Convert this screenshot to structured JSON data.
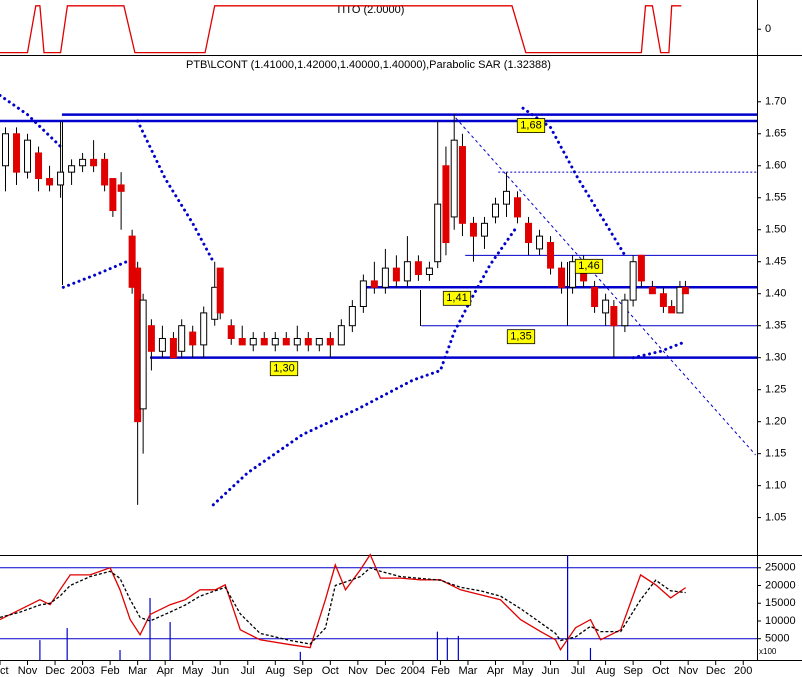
{
  "chart_data": [
    {
      "type": "line",
      "title": "TITO (2.0000)",
      "xlim": [
        0,
        27.5
      ],
      "ylim": [
        -2.5,
        2.5
      ],
      "yticks": [
        0
      ],
      "series": [
        {
          "color": "#e00000",
          "x": [
            0,
            1.0,
            1.3,
            1.45,
            1.6,
            2.2,
            2.45,
            4.5,
            4.9,
            7.45,
            7.8,
            18.6,
            19.1,
            23.3,
            23.45,
            23.7,
            24.0,
            24.3,
            24.4,
            24.75
          ],
          "values": [
            -2,
            -2,
            2,
            2,
            -2,
            -2,
            2,
            2,
            -2,
            -2,
            2,
            2,
            -2,
            -2,
            2,
            2,
            -2,
            -2,
            2,
            2
          ]
        }
      ]
    },
    {
      "type": "candlestick",
      "title": "PTB\\LCONT (1.41000,1.42000,1.40000,1.40000),Parabolic SAR (1.32388)",
      "xlim": [
        0,
        27.5
      ],
      "ylim": [
        0.99,
        1.77
      ],
      "yticks": [
        {
          "value": 1.05,
          "label": "1.05"
        },
        {
          "value": 1.1,
          "label": "1.10"
        },
        {
          "value": 1.15,
          "label": "1.15"
        },
        {
          "value": 1.2,
          "label": "1.20"
        },
        {
          "value": 1.25,
          "label": "1.25"
        },
        {
          "value": 1.3,
          "label": "1.30"
        },
        {
          "value": 1.35,
          "label": "1.35"
        },
        {
          "value": 1.4,
          "label": "1.40"
        },
        {
          "value": 1.45,
          "label": "1.45"
        },
        {
          "value": 1.5,
          "label": "1.50"
        },
        {
          "value": 1.55,
          "label": "1.55"
        },
        {
          "value": 1.6,
          "label": "1.60"
        },
        {
          "value": 1.65,
          "label": "1.65"
        },
        {
          "value": 1.7,
          "label": "1.70"
        }
      ],
      "up_color": "#ffffff",
      "down_color": "#e00000",
      "x": [
        0.2,
        0.6,
        1.0,
        1.4,
        1.8,
        2.2,
        2.6,
        3.0,
        3.4,
        3.8,
        4.1,
        4.4,
        4.8,
        5.0,
        5.2,
        5.5,
        5.9,
        6.3,
        6.6,
        7.0,
        7.4,
        7.8,
        8.0,
        8.4,
        8.8,
        9.2,
        9.6,
        10.0,
        10.4,
        10.8,
        11.2,
        11.6,
        12.0,
        12.4,
        12.8,
        13.2,
        13.6,
        14.0,
        14.4,
        14.8,
        15.2,
        15.6,
        15.9,
        16.2,
        16.5,
        16.8,
        17.2,
        17.6,
        18.0,
        18.4,
        18.8,
        19.2,
        19.6,
        20.0,
        20.4,
        20.8,
        21.2,
        21.6,
        22.0,
        22.3,
        22.7,
        23.0,
        23.3,
        23.7,
        24.1,
        24.4,
        24.7,
        24.9
      ],
      "open": [
        1.6,
        1.65,
        1.59,
        1.62,
        1.58,
        1.57,
        1.59,
        1.6,
        1.61,
        1.61,
        1.58,
        1.57,
        1.49,
        1.44,
        1.22,
        1.35,
        1.31,
        1.33,
        1.31,
        1.34,
        1.32,
        1.36,
        1.44,
        1.35,
        1.33,
        1.32,
        1.33,
        1.32,
        1.33,
        1.32,
        1.33,
        1.32,
        1.33,
        1.32,
        1.35,
        1.38,
        1.42,
        1.41,
        1.44,
        1.42,
        1.45,
        1.43,
        1.45,
        1.6,
        1.52,
        1.63,
        1.51,
        1.49,
        1.52,
        1.54,
        1.55,
        1.51,
        1.47,
        1.48,
        1.44,
        1.41,
        1.45,
        1.41,
        1.37,
        1.38,
        1.35,
        1.39,
        1.46,
        1.41,
        1.4,
        1.38,
        1.37,
        1.41
      ],
      "high": [
        1.66,
        1.66,
        1.65,
        1.63,
        1.6,
        1.67,
        1.61,
        1.62,
        1.64,
        1.62,
        1.58,
        1.59,
        1.5,
        1.45,
        1.4,
        1.36,
        1.35,
        1.34,
        1.36,
        1.35,
        1.38,
        1.45,
        1.44,
        1.36,
        1.35,
        1.34,
        1.34,
        1.34,
        1.34,
        1.35,
        1.34,
        1.33,
        1.34,
        1.36,
        1.39,
        1.43,
        1.45,
        1.47,
        1.46,
        1.49,
        1.46,
        1.45,
        1.67,
        1.63,
        1.68,
        1.65,
        1.52,
        1.52,
        1.55,
        1.59,
        1.56,
        1.52,
        1.5,
        1.49,
        1.45,
        1.46,
        1.46,
        1.42,
        1.4,
        1.39,
        1.4,
        1.46,
        1.46,
        1.42,
        1.41,
        1.39,
        1.42,
        1.42
      ],
      "low": [
        1.56,
        1.57,
        1.58,
        1.56,
        1.56,
        1.55,
        1.57,
        1.59,
        1.59,
        1.56,
        1.52,
        1.5,
        1.4,
        1.07,
        1.15,
        1.28,
        1.3,
        1.3,
        1.3,
        1.3,
        1.3,
        1.35,
        1.36,
        1.32,
        1.32,
        1.31,
        1.32,
        1.31,
        1.32,
        1.31,
        1.31,
        1.31,
        1.3,
        1.32,
        1.34,
        1.37,
        1.4,
        1.4,
        1.41,
        1.41,
        1.42,
        1.42,
        1.44,
        1.46,
        1.5,
        1.49,
        1.45,
        1.47,
        1.51,
        1.52,
        1.51,
        1.46,
        1.46,
        1.43,
        1.4,
        1.4,
        1.41,
        1.37,
        1.35,
        1.3,
        1.34,
        1.38,
        1.41,
        1.4,
        1.37,
        1.37,
        1.37,
        1.4
      ],
      "close": [
        1.65,
        1.59,
        1.64,
        1.58,
        1.57,
        1.59,
        1.6,
        1.61,
        1.6,
        1.57,
        1.53,
        1.56,
        1.41,
        1.2,
        1.39,
        1.31,
        1.33,
        1.3,
        1.35,
        1.32,
        1.37,
        1.41,
        1.37,
        1.33,
        1.32,
        1.33,
        1.32,
        1.33,
        1.32,
        1.33,
        1.32,
        1.33,
        1.32,
        1.35,
        1.38,
        1.42,
        1.41,
        1.44,
        1.42,
        1.45,
        1.43,
        1.44,
        1.54,
        1.48,
        1.64,
        1.51,
        1.49,
        1.51,
        1.54,
        1.56,
        1.52,
        1.48,
        1.49,
        1.44,
        1.41,
        1.45,
        1.42,
        1.38,
        1.39,
        1.35,
        1.39,
        1.45,
        1.42,
        1.4,
        1.38,
        1.37,
        1.41,
        1.4
      ],
      "sar": {
        "color": "#0000cc",
        "x": [
          0,
          1,
          2.2,
          null,
          2.3,
          3.5,
          4.6,
          null,
          5,
          6,
          7,
          7.75,
          null,
          7.75,
          9,
          11,
          13,
          15,
          16,
          16.5,
          17.1,
          17.8,
          18.7,
          null,
          19,
          20,
          21,
          22,
          22.7,
          null,
          23,
          24,
          24.9
        ],
        "values": [
          1.71,
          1.68,
          1.63,
          null,
          1.41,
          1.43,
          1.45,
          null,
          1.67,
          1.58,
          1.51,
          1.45,
          null,
          1.07,
          1.12,
          1.18,
          1.22,
          1.265,
          1.28,
          1.34,
          1.39,
          1.445,
          1.5,
          null,
          1.69,
          1.66,
          1.58,
          1.51,
          1.46,
          null,
          1.3,
          1.31,
          1.325
        ]
      },
      "level_color": "#0000cc",
      "levels": [
        {
          "value": 1.68,
          "label": "1,68",
          "from": 2.25,
          "style": "thick"
        },
        {
          "value": 1.67,
          "from": 0,
          "style": "thick"
        },
        {
          "value": 1.59,
          "from": 18.1,
          "style": "dotted"
        },
        {
          "value": 1.46,
          "label": "1,46",
          "from": 16.9,
          "style": "thin"
        },
        {
          "value": 1.41,
          "label": "1,41",
          "from": 13.1,
          "style": "thick"
        },
        {
          "value": 1.35,
          "label": "1,35",
          "from": 15.3,
          "style": "thin"
        },
        {
          "value": 1.3,
          "label": "1,30",
          "from": 5.45,
          "style": "thick"
        }
      ],
      "trendline": {
        "from": [
          16.55,
          1.675
        ],
        "to": [
          27.45,
          1.148
        ]
      }
    },
    {
      "type": "line",
      "xlim": [
        0,
        27.5
      ],
      "ylim": [
        -1000,
        28600
      ],
      "yticks": [
        5000,
        10000,
        15000,
        20000,
        25000
      ],
      "note": "x100",
      "level_color": "#0000cc",
      "levels": [
        {
          "value": 25000
        },
        {
          "value": 5000
        }
      ],
      "xticks": [
        {
          "value": 0,
          "label": "Oct"
        },
        {
          "value": 1,
          "label": "Nov"
        },
        {
          "value": 2,
          "label": "Dec"
        },
        {
          "value": 3,
          "label": "2003"
        },
        {
          "value": 4,
          "label": "Feb"
        },
        {
          "value": 5,
          "label": "Mar"
        },
        {
          "value": 6,
          "label": "Apr"
        },
        {
          "value": 7,
          "label": "May"
        },
        {
          "value": 8,
          "label": "Jun"
        },
        {
          "value": 9,
          "label": "Jul"
        },
        {
          "value": 10,
          "label": "Aug"
        },
        {
          "value": 11,
          "label": "Sep"
        },
        {
          "value": 12,
          "label": "Oct"
        },
        {
          "value": 13,
          "label": "Nov"
        },
        {
          "value": 14,
          "label": "Dec"
        },
        {
          "value": 15,
          "label": "2004"
        },
        {
          "value": 16,
          "label": "Feb"
        },
        {
          "value": 17,
          "label": "Mar"
        },
        {
          "value": 18,
          "label": "Apr"
        },
        {
          "value": 19,
          "label": "May"
        },
        {
          "value": 20,
          "label": "Jun"
        },
        {
          "value": 21,
          "label": "Jul"
        },
        {
          "value": 22,
          "label": "Aug"
        },
        {
          "value": 23,
          "label": "Sep"
        },
        {
          "value": 24,
          "label": "Oct"
        },
        {
          "value": 25,
          "label": "Nov"
        },
        {
          "value": 26,
          "label": "Dec"
        },
        {
          "value": 27,
          "label": "200"
        }
      ],
      "series": [
        {
          "type": "bar",
          "color": "#0000cc",
          "x": [
            1.45,
            2.44,
            4.36,
            5.45,
            6.18,
            10.91,
            15.89,
            16.25,
            16.65,
            20.62,
            21.45
          ],
          "values": [
            4600,
            8000,
            1800,
            16500,
            9700,
            1300,
            7000,
            5300,
            5800,
            28600,
            2400
          ]
        },
        {
          "type": "line",
          "color": "#e00000",
          "x": [
            0,
            0.73,
            1.45,
            1.82,
            2.18,
            2.55,
            3.27,
            4,
            4.36,
            4.73,
            5.09,
            5.45,
            6.18,
            6.73,
            7.27,
            7.82,
            8.18,
            8.73,
            9.45,
            10.55,
            11.27,
            11.82,
            12.18,
            12.55,
            13.09,
            13.45,
            13.82,
            14.55,
            15.27,
            16,
            16.73,
            17.45,
            18.18,
            18.91,
            19.64,
            20.18,
            20.36,
            20.91,
            21.45,
            21.82,
            22.55,
            23.27,
            23.82,
            24.36,
            24.91
          ],
          "values": [
            10400,
            13200,
            16000,
            14600,
            18800,
            23000,
            23000,
            25000,
            18800,
            10400,
            6100,
            11800,
            14600,
            16000,
            18800,
            18800,
            20200,
            7500,
            4700,
            3300,
            2500,
            16000,
            25800,
            18800,
            24400,
            28700,
            22100,
            22100,
            21600,
            21600,
            18800,
            17400,
            16000,
            10400,
            7000,
            4700,
            1900,
            8100,
            10400,
            4700,
            7500,
            23000,
            20200,
            16500,
            19400
          ]
        },
        {
          "type": "line",
          "color": "#000000",
          "dash": true,
          "x": [
            0,
            0.73,
            1.45,
            1.82,
            2.18,
            2.55,
            3.27,
            4,
            4.36,
            4.73,
            5.09,
            5.45,
            6.18,
            6.73,
            7.27,
            7.82,
            8.18,
            8.73,
            9.45,
            10.55,
            11.27,
            11.82,
            12.18,
            12.55,
            13.09,
            13.45,
            13.82,
            14.55,
            15.27,
            16,
            16.73,
            17.45,
            18.18,
            18.91,
            19.64,
            20.18,
            20.36,
            20.91,
            21.45,
            21.82,
            22.55,
            23.27,
            23.82,
            24.36,
            24.91
          ],
          "values": [
            11000,
            12500,
            14500,
            15000,
            17000,
            20000,
            22500,
            24000,
            22000,
            16000,
            11000,
            10000,
            12500,
            14500,
            17000,
            18500,
            19500,
            12000,
            6500,
            4500,
            3500,
            8000,
            20000,
            21000,
            22500,
            25000,
            24000,
            22500,
            22000,
            21500,
            19500,
            18500,
            17000,
            13500,
            9500,
            6500,
            4500,
            5500,
            8500,
            7000,
            7000,
            16000,
            21500,
            18500,
            18000
          ]
        }
      ]
    }
  ]
}
